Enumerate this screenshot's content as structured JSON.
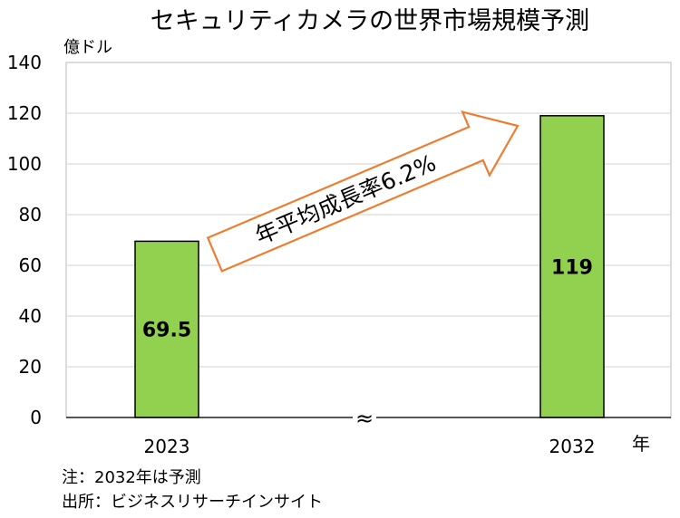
{
  "chart_data": {
    "type": "bar",
    "title": "セキュリティカメラの世界市場規模予測",
    "ylabel": "億ドル",
    "xlabel": "年",
    "categories": [
      "2023",
      "2032"
    ],
    "values": [
      69.5,
      119
    ],
    "value_labels": [
      "69.5",
      "119"
    ],
    "ylim": [
      0,
      140
    ],
    "yticks": [
      0,
      20,
      40,
      60,
      80,
      100,
      120,
      140
    ],
    "grid": true,
    "axis_break": "≈",
    "annotation": "年平均成長率6.2%",
    "bar_color": "#92d050",
    "arrow_color": "#ed7d31",
    "notes": [
      "注：2032年は予測",
      "出所：ビジネスリサーチインサイト"
    ]
  }
}
